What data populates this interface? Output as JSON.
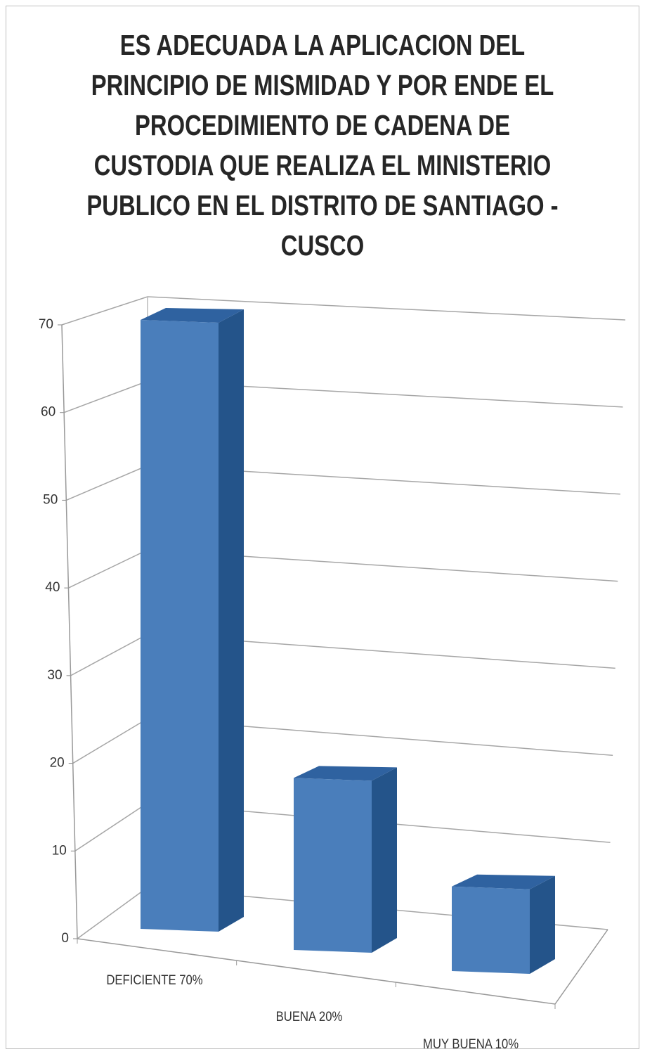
{
  "chart_data": {
    "type": "bar3d",
    "title": "ES ADECUADA LA APLICACION DEL PRINCIPIO DE MISMIDAD Y POR ENDE EL PROCEDIMIENTO DE CADENA DE CUSTODIA QUE REALIZA EL MINISTERIO PUBLICO EN EL DISTRITO DE SANTIAGO - CUSCO",
    "categories": [
      "DEFICIENTE 70%",
      "BUENA 20%",
      "MUY BUENA 10%"
    ],
    "values": [
      70,
      20,
      10
    ],
    "color": "#4a7ebb",
    "ylim": [
      0,
      70
    ],
    "yticks": [
      0,
      10,
      20,
      30,
      40,
      50,
      60,
      70
    ],
    "grid": true
  }
}
